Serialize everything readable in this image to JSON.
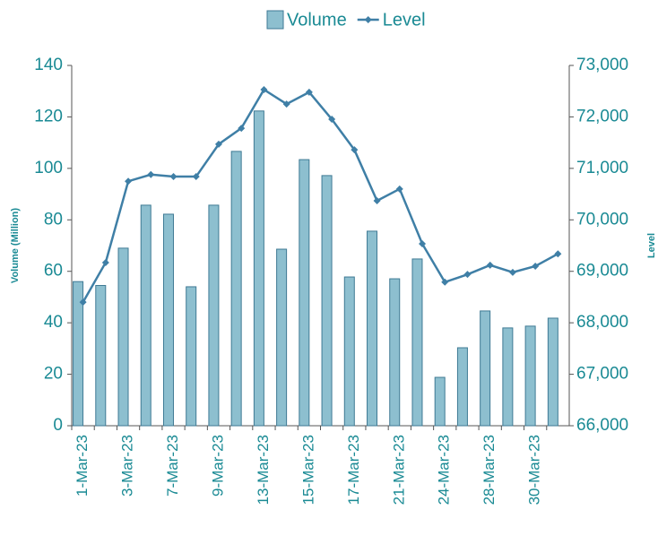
{
  "chart_data": {
    "type": "bar_line",
    "categories": [
      "1-Mar-23",
      null,
      "3-Mar-23",
      null,
      "7-Mar-23",
      null,
      "9-Mar-23",
      null,
      "13-Mar-23",
      null,
      "15-Mar-23",
      null,
      "17-Mar-23",
      null,
      "21-Mar-23",
      null,
      "24-Mar-23",
      null,
      "28-Mar-23",
      null,
      "30-Mar-23",
      null
    ],
    "series": [
      {
        "name": "Volume",
        "type": "bar",
        "color": "#8dbfcf",
        "edge": "#3f7a94",
        "values": [
          56,
          54.5,
          69,
          85.7,
          82.2,
          54,
          85.7,
          106.6,
          122.3,
          68.6,
          103.4,
          97.2,
          57.8,
          75.6,
          57.1,
          64.8,
          18.8,
          30.3,
          44.6,
          38,
          38.7,
          41.8
        ]
      },
      {
        "name": "Level",
        "type": "line",
        "axis": "y2",
        "color": "#3f7fa6",
        "values": [
          68400,
          69170,
          70750,
          70880,
          70840,
          70840,
          71470,
          71780,
          72530,
          72250,
          72480,
          71955,
          71360,
          70370,
          70600,
          69535,
          68790,
          68940,
          69120,
          68980,
          69100,
          69340
        ]
      }
    ],
    "ylabel": "Volume (Million)",
    "y2label": "Level",
    "ylim": [
      0,
      140
    ],
    "yticks": [
      0,
      20,
      40,
      60,
      80,
      100,
      120,
      140
    ],
    "y2lim": [
      66000,
      73000
    ],
    "y2ticks": [
      {
        "value": 66000,
        "label": "66,000"
      },
      {
        "value": 67000,
        "label": "67,000"
      },
      {
        "value": 68000,
        "label": "68,000"
      },
      {
        "value": 69000,
        "label": "69,000"
      },
      {
        "value": 70000,
        "label": "70,000"
      },
      {
        "value": 71000,
        "label": "71,000"
      },
      {
        "value": 72000,
        "label": "72,000"
      },
      {
        "value": 73000,
        "label": "73,000"
      }
    ],
    "legend": "top",
    "grid": false
  }
}
